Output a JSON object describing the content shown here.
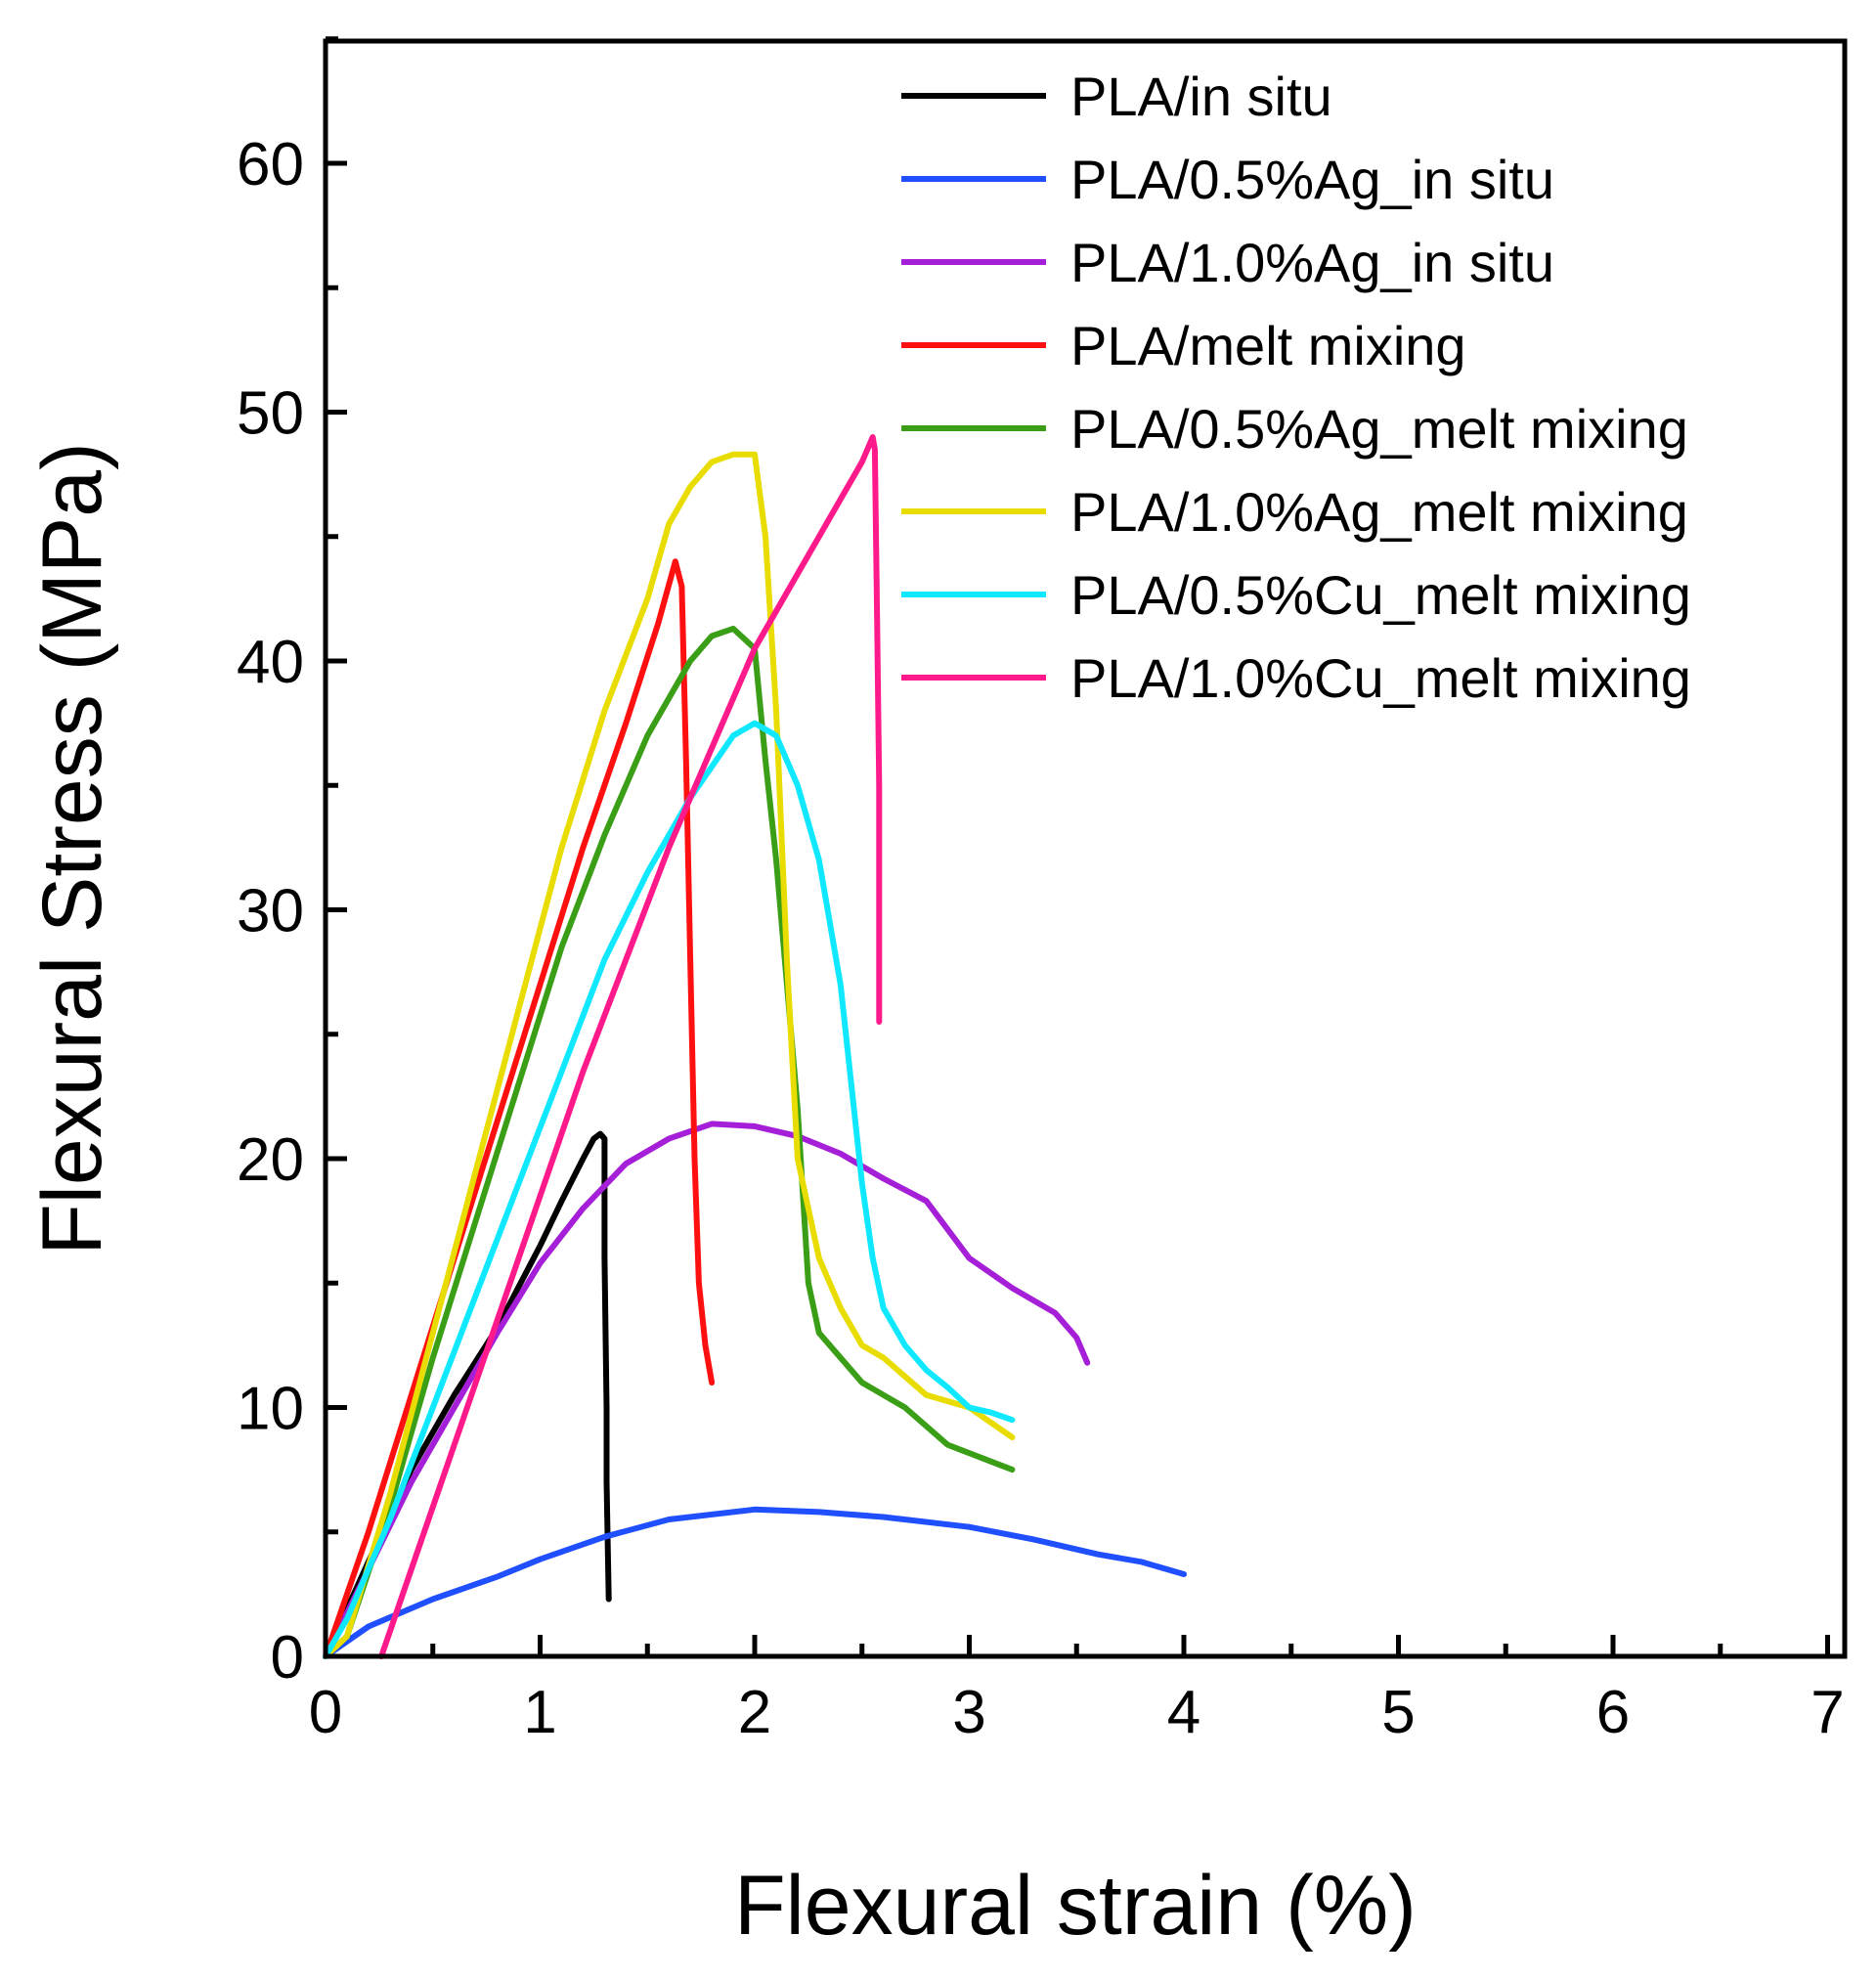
{
  "chart_data": {
    "type": "line",
    "title": "",
    "xlabel": "Flexural strain (%)",
    "ylabel": "Flexural Stress (MPa)",
    "xlim": [
      0,
      7
    ],
    "ylim": [
      0,
      65
    ],
    "xticks": [
      0,
      1,
      2,
      3,
      4,
      5,
      6,
      7
    ],
    "xtick_labels": [
      "0",
      "1",
      "2",
      "3",
      "4",
      "5",
      "6",
      "7"
    ],
    "yticks": [
      0,
      10,
      20,
      30,
      40,
      50,
      60
    ],
    "ytick_labels": [
      "0",
      "10",
      "20",
      "30",
      "40",
      "50",
      "60"
    ],
    "grid": false,
    "legend_position": "top-right",
    "series": [
      {
        "name": "PLA/in situ",
        "color": "#000000",
        "x": [
          0,
          0.2,
          0.4,
          0.6,
          0.8,
          1.0,
          1.1,
          1.2,
          1.25,
          1.28,
          1.3,
          1.3,
          1.31,
          1.31,
          1.32
        ],
        "y": [
          0,
          3.8,
          7.5,
          10.5,
          13.2,
          16.5,
          18.3,
          20.0,
          20.8,
          21.0,
          20.8,
          16.0,
          10.0,
          7.0,
          2.3
        ]
      },
      {
        "name": "PLA/0.5%Ag_in situ",
        "color": "#1f4fff",
        "x": [
          0,
          0.2,
          0.5,
          0.8,
          1.0,
          1.3,
          1.6,
          2.0,
          2.3,
          2.6,
          3.0,
          3.3,
          3.6,
          3.8,
          4.0
        ],
        "y": [
          0,
          1.2,
          2.3,
          3.2,
          3.9,
          4.8,
          5.5,
          5.9,
          5.8,
          5.6,
          5.2,
          4.7,
          4.1,
          3.8,
          3.3
        ]
      },
      {
        "name": "PLA/1.0%Ag_in situ",
        "color": "#a61fd8",
        "x": [
          0,
          0.2,
          0.4,
          0.6,
          0.8,
          1.0,
          1.2,
          1.4,
          1.6,
          1.8,
          2.0,
          2.2,
          2.4,
          2.6,
          2.8,
          3.0,
          3.2,
          3.4,
          3.5,
          3.55
        ],
        "y": [
          0,
          3.5,
          7.0,
          10.0,
          13.0,
          15.8,
          18.0,
          19.8,
          20.8,
          21.4,
          21.3,
          20.9,
          20.2,
          19.2,
          18.3,
          16.0,
          14.8,
          13.8,
          12.8,
          11.8
        ]
      },
      {
        "name": "PLA/melt mixing",
        "color": "#ff1010",
        "x": [
          0,
          0.2,
          0.4,
          0.6,
          0.8,
          1.0,
          1.2,
          1.4,
          1.55,
          1.63,
          1.66,
          1.68,
          1.7,
          1.72,
          1.74,
          1.77,
          1.8
        ],
        "y": [
          0,
          5.0,
          10.5,
          16.0,
          21.5,
          27.0,
          32.5,
          37.5,
          41.5,
          44.0,
          43.0,
          36.0,
          28.0,
          20.0,
          15.0,
          12.5,
          11.0
        ]
      },
      {
        "name": "PLA/0.5%Ag_melt mixing",
        "color": "#3a9e16",
        "x": [
          0,
          0.1,
          0.3,
          0.5,
          0.7,
          0.9,
          1.1,
          1.3,
          1.5,
          1.7,
          1.8,
          1.9,
          2.0,
          2.05,
          2.1,
          2.2,
          2.25,
          2.3,
          2.4,
          2.5,
          2.7,
          2.9,
          3.2
        ],
        "y": [
          0,
          0.8,
          6.0,
          12.0,
          17.5,
          23.0,
          28.5,
          33.0,
          37.0,
          40.0,
          41.0,
          41.3,
          40.5,
          36.0,
          32.0,
          22.0,
          15.0,
          13.0,
          12.0,
          11.0,
          10.0,
          8.5,
          7.5
        ]
      },
      {
        "name": "PLA/1.0%Ag_melt mixing",
        "color": "#e8dc00",
        "x": [
          0,
          0.1,
          0.3,
          0.5,
          0.7,
          0.9,
          1.1,
          1.3,
          1.5,
          1.6,
          1.7,
          1.8,
          1.9,
          2.0,
          2.05,
          2.1,
          2.15,
          2.2,
          2.3,
          2.4,
          2.5,
          2.6,
          2.8,
          3.0,
          3.2
        ],
        "y": [
          0,
          0.8,
          6.5,
          13.0,
          19.5,
          26.0,
          32.5,
          38.0,
          42.5,
          45.5,
          47.0,
          48.0,
          48.3,
          48.3,
          45.0,
          38.0,
          28.0,
          20.0,
          16.0,
          14.0,
          12.5,
          12.0,
          10.5,
          10.0,
          8.8
        ]
      },
      {
        "name": "PLA/0.5%Cu_melt mixing",
        "color": "#10e8ff",
        "x": [
          0,
          0.1,
          0.3,
          0.5,
          0.7,
          0.9,
          1.1,
          1.3,
          1.5,
          1.7,
          1.9,
          2.0,
          2.1,
          2.2,
          2.3,
          2.4,
          2.45,
          2.5,
          2.55,
          2.6,
          2.7,
          2.8,
          2.9,
          3.0,
          3.1,
          3.2
        ],
        "y": [
          0,
          1.5,
          5.5,
          10.0,
          14.5,
          19.0,
          23.5,
          28.0,
          31.5,
          34.5,
          37.0,
          37.5,
          37.0,
          35.0,
          32.0,
          27.0,
          23.0,
          19.0,
          16.0,
          14.0,
          12.5,
          11.5,
          10.8,
          10.0,
          9.8,
          9.5
        ]
      },
      {
        "name": "PLA/1.0%Cu_melt mixing",
        "color": "#ff1a8c",
        "x": [
          0.26,
          0.4,
          0.6,
          0.8,
          1.0,
          1.2,
          1.4,
          1.6,
          1.8,
          2.0,
          2.2,
          2.4,
          2.5,
          2.55,
          2.56,
          2.57,
          2.58,
          2.58
        ],
        "y": [
          0,
          3.5,
          8.5,
          13.5,
          18.5,
          23.5,
          28.0,
          32.5,
          36.5,
          40.5,
          43.5,
          46.5,
          48.0,
          49.0,
          48.5,
          42.0,
          35.0,
          25.5
        ]
      }
    ]
  }
}
